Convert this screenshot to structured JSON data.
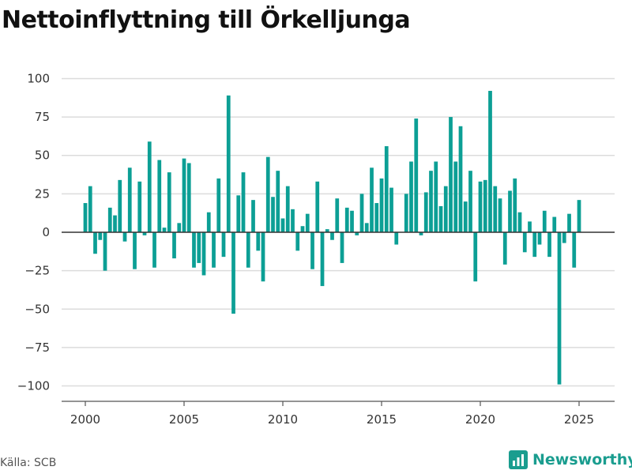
{
  "brand_color": "#1a9d8f",
  "bar_color": "#0c9f95",
  "source_text": "Källa: SCB",
  "brand_name": "Newsworthy",
  "brand_icon": "newsworthy-logo-icon",
  "chart_data": {
    "type": "bar",
    "title": "Nettoinflyttning till Örkelljunga",
    "xlabel": "",
    "ylabel": "",
    "ylim": [
      -110,
      110
    ],
    "xlim": [
      1998.8,
      2026.8
    ],
    "yticks": [
      100,
      75,
      50,
      25,
      0,
      -25,
      -50,
      -75,
      -100
    ],
    "ytick_labels": [
      "100",
      "75",
      "50",
      "25",
      "0",
      "−25",
      "−50",
      "−75",
      "−100"
    ],
    "xticks": [
      2000,
      2005,
      2010,
      2015,
      2020,
      2025
    ],
    "xtick_labels": [
      "2000",
      "2005",
      "2010",
      "2015",
      "2020",
      "2025"
    ],
    "grid": true,
    "legend": "none",
    "frequency": "quarterly",
    "start_period": "2000 Q1",
    "values": [
      19,
      30,
      -14,
      -5,
      -25,
      16,
      11,
      34,
      -6,
      42,
      -24,
      33,
      -2,
      59,
      -23,
      47,
      3,
      39,
      -17,
      6,
      48,
      45,
      -23,
      -20,
      -28,
      13,
      -23,
      35,
      -16,
      89,
      -53,
      24,
      39,
      -23,
      21,
      -12,
      -32,
      49,
      23,
      40,
      9,
      30,
      15,
      -12,
      4,
      12,
      -24,
      33,
      -35,
      2,
      -5,
      22,
      -20,
      16,
      14,
      -2,
      25,
      6,
      42,
      19,
      35,
      56,
      29,
      -8,
      0,
      25,
      46,
      74,
      -2,
      26,
      40,
      46,
      17,
      30,
      75,
      46,
      69,
      20,
      40,
      -32,
      33,
      34,
      92,
      30,
      22,
      -21,
      27,
      35,
      13,
      -13,
      7,
      -16,
      -8,
      14,
      -16,
      10,
      -99,
      -7,
      12,
      -23,
      21
    ]
  }
}
